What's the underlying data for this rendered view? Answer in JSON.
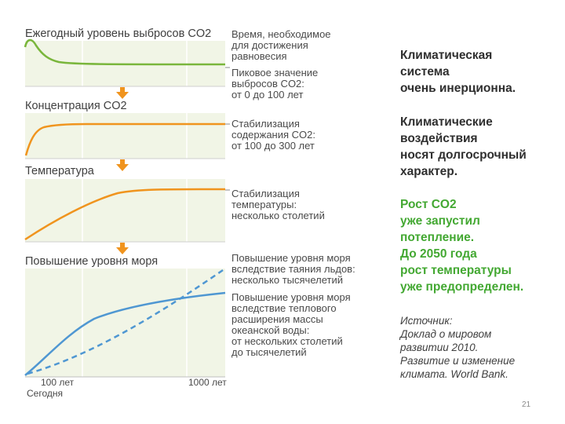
{
  "panels": [
    {
      "title": "Ежегодный уровень выбросов CO2",
      "description": "",
      "color": "#7ab63c"
    },
    {
      "title": "Концентрация CO2",
      "description": "",
      "color": "#f0941e"
    },
    {
      "title": "Температура",
      "description": "",
      "color": "#f0941e"
    },
    {
      "title": "Повышение уровня моря",
      "description": "",
      "color": "#4f97d2"
    }
  ],
  "descriptions": {
    "time_header": "Время, необходимое\nдля достижения\nравновесия",
    "peak": "Пиковое значение\nвыбросов CO2:\nот 0 до 100 лет",
    "co2_stab": "Стабилизация\nсодержания CO2:\nот 100 до 300 лет",
    "temp_stab": "Стабилизация\nтемпературы:\nнесколько столетий",
    "sea_ice": "Повышение уровня моря\nвследствие таяния льдов:\nнесколько тысячелетий",
    "sea_thermal": "Повышение уровня моря\nвследствие теплового\nрасширения массы\nокеанской воды:\nот нескольких столетий\nдо тысячелетий"
  },
  "axis": {
    "tick_100": "100 лет",
    "tick_1000": "1000 лет",
    "today": "Сегодня"
  },
  "sidebar": {
    "para1": "Климатическая\nсистема\nочень инерционна.",
    "para2": "Климатические\nвоздействия\nносят долгосрочный\nхарактер.",
    "para3": "Рост CO2\nуже запустил\nпотепление.\nДо 2050 года\nрост температуры\nуже предопределен.",
    "source": "Источник:\nДоклад о мировом\nразвитии 2010.\nРазвитие и изменение\nклимата. World Bank."
  },
  "page_number": "21",
  "colors": {
    "panel_bg": "#f1f5e6",
    "arrow": "#f0941e",
    "green_text": "#43a832"
  }
}
